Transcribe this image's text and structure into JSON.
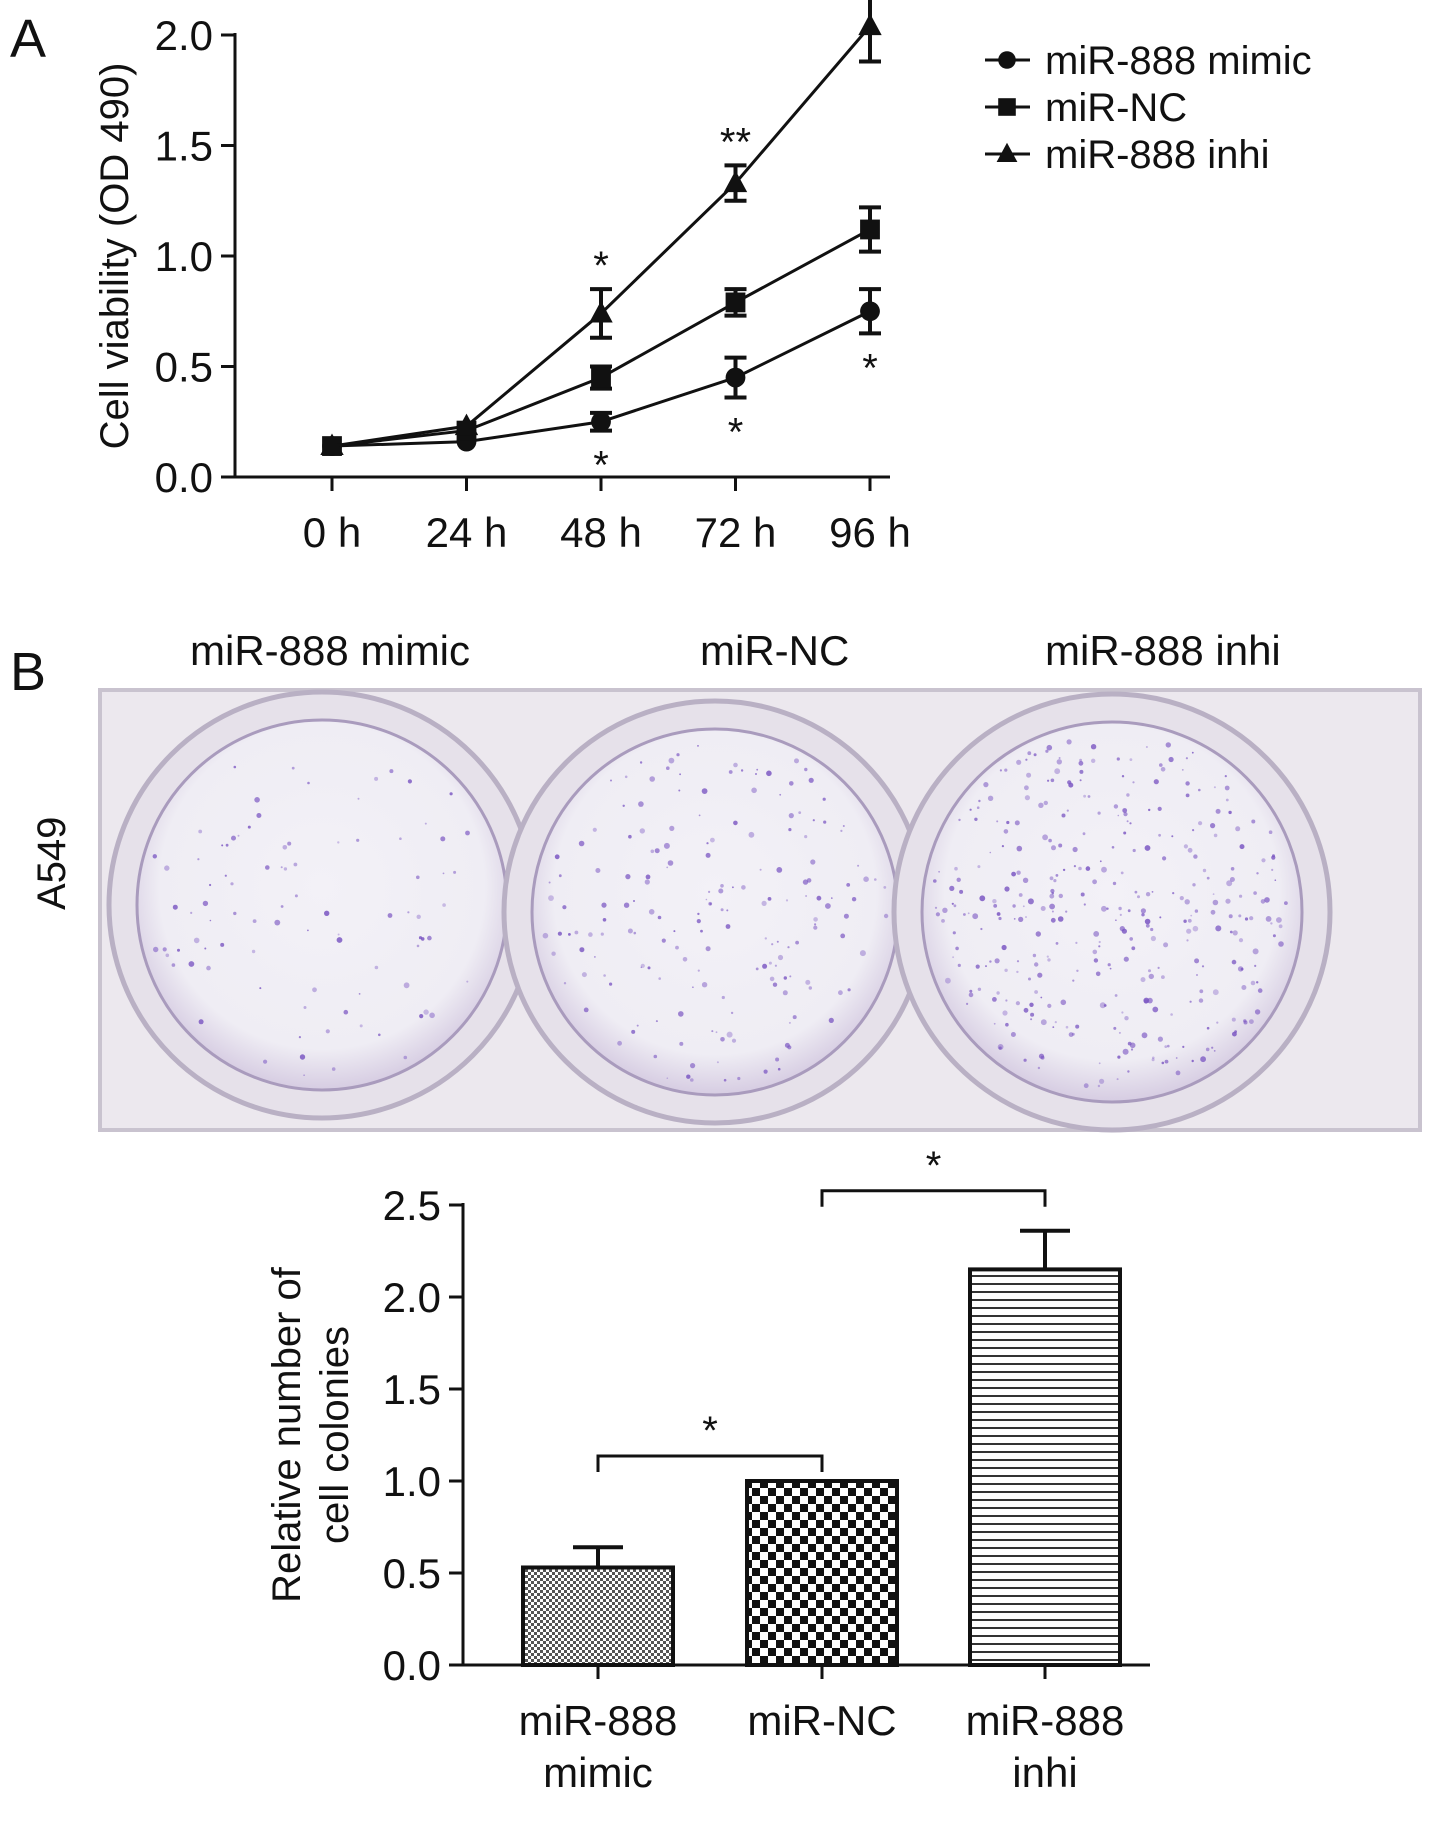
{
  "panel_a": {
    "letter": "A"
  },
  "panel_b": {
    "letter": "B",
    "photo": {
      "row_label": "A549",
      "column_labels": [
        "miR-888 mimic",
        "miR-NC",
        "miR-888 inhi"
      ],
      "well_colors": {
        "plate": "#ece8ee",
        "well": "#efedf4",
        "stain": "#7a55c2"
      }
    }
  },
  "chart_data": [
    {
      "type": "line",
      "title": "",
      "xlabel": "",
      "ylabel": "Cell viability (OD 490)",
      "categories": [
        "0 h",
        "24 h",
        "48 h",
        "72 h",
        "96 h"
      ],
      "ylim": [
        0,
        2.0
      ],
      "yticks": [
        "0.0",
        "0.5",
        "1.0",
        "1.5",
        "2.0"
      ],
      "legend_position": "top-right",
      "series": [
        {
          "name": "miR-888 mimic",
          "marker": "circle",
          "values": [
            0.14,
            0.16,
            0.25,
            0.45,
            0.75
          ],
          "errors": [
            0.02,
            0.02,
            0.04,
            0.09,
            0.1
          ]
        },
        {
          "name": "miR-NC",
          "marker": "square",
          "values": [
            0.14,
            0.21,
            0.45,
            0.79,
            1.12
          ],
          "errors": [
            0.02,
            0.02,
            0.05,
            0.06,
            0.1
          ]
        },
        {
          "name": "miR-888 inhi",
          "marker": "triangle",
          "values": [
            0.14,
            0.23,
            0.74,
            1.33,
            2.04
          ],
          "errors": [
            0.02,
            0.02,
            0.11,
            0.08,
            0.16
          ]
        }
      ],
      "annotations": [
        {
          "category": "48 h",
          "text": "*",
          "position": "above"
        },
        {
          "category": "48 h",
          "text": "*",
          "position": "below"
        },
        {
          "category": "72 h",
          "text": "**",
          "position": "above"
        },
        {
          "category": "72 h",
          "text": "*",
          "position": "below"
        },
        {
          "category": "96 h",
          "text": "*",
          "position": "above"
        },
        {
          "category": "96 h",
          "text": "*",
          "position": "below"
        }
      ]
    },
    {
      "type": "bar",
      "title": "",
      "xlabel": "",
      "ylabel_lines": [
        "Relative number of",
        "cell colonies"
      ],
      "categories": [
        [
          "miR-888",
          "mimic"
        ],
        [
          "miR-NC"
        ],
        [
          "miR-888",
          "inhi"
        ]
      ],
      "values": [
        0.53,
        1.0,
        2.15
      ],
      "errors": [
        0.11,
        0.0,
        0.21
      ],
      "patterns": [
        "fine-check",
        "checker",
        "horizontal-lines"
      ],
      "ylim": [
        0,
        2.5
      ],
      "yticks": [
        "0.0",
        "0.5",
        "1.0",
        "1.5",
        "2.0",
        "2.5"
      ],
      "significance": [
        {
          "from": 0,
          "to": 1,
          "text": "*"
        },
        {
          "from": 1,
          "to": 2,
          "text": "*"
        }
      ]
    }
  ]
}
